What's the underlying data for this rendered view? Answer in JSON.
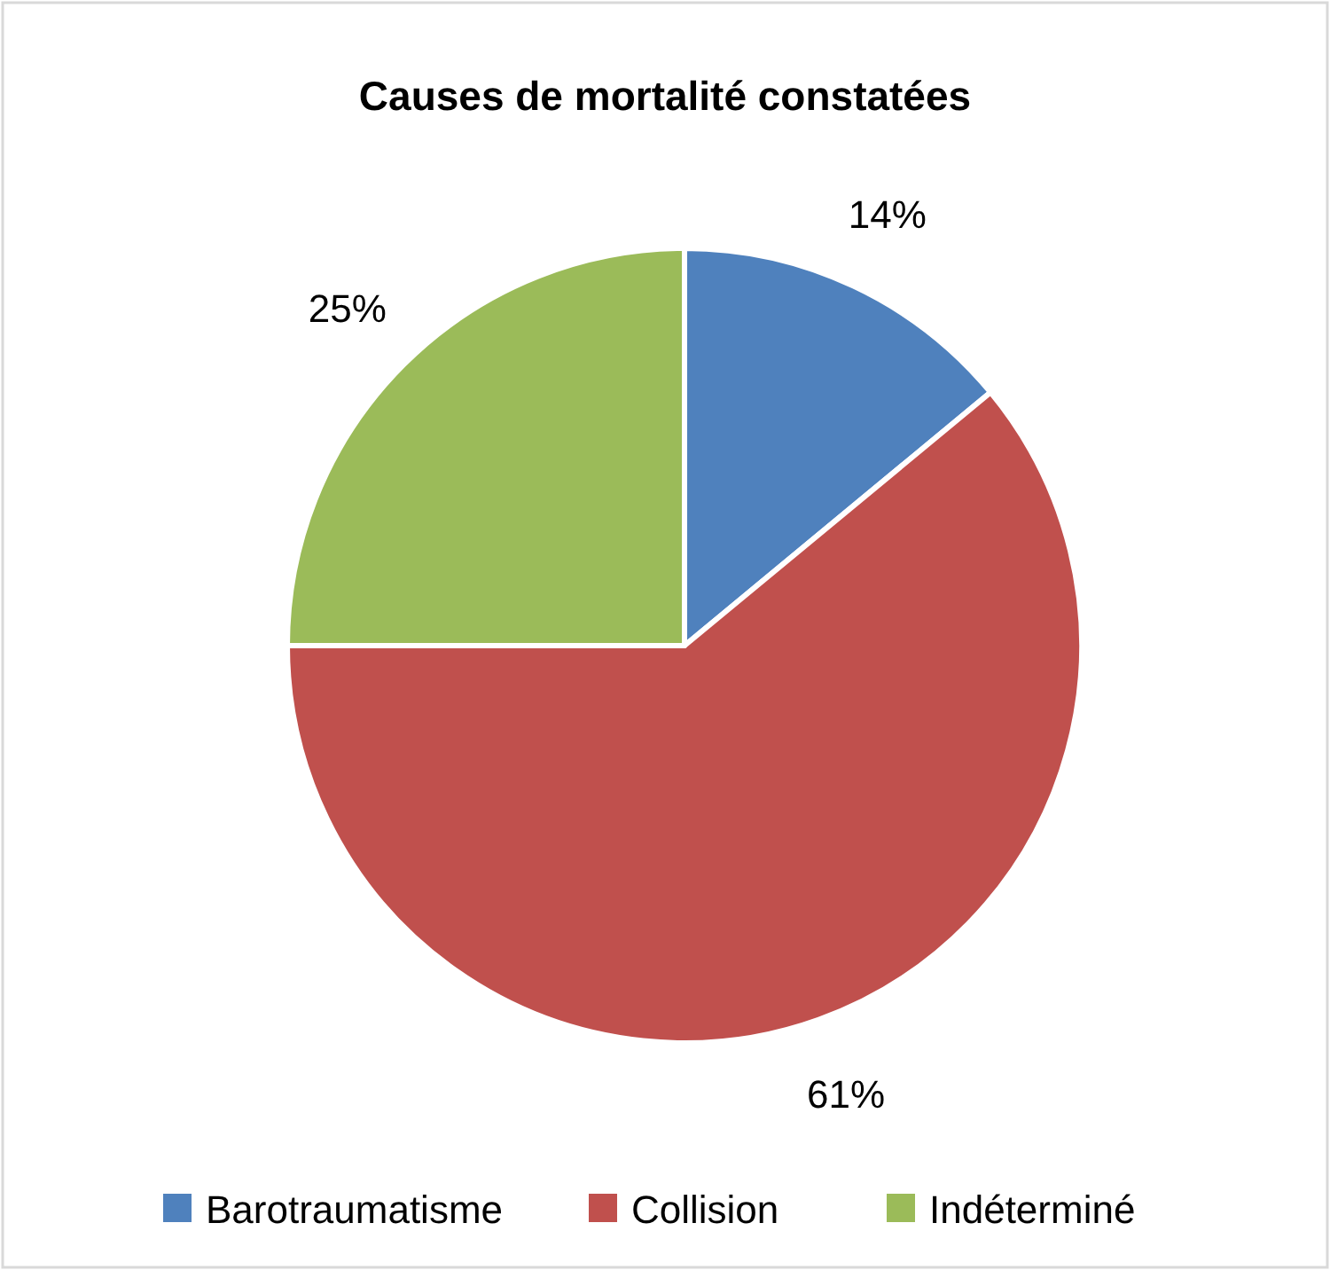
{
  "chart_data": {
    "type": "pie",
    "title": "Causes de mortalité constatées",
    "categories": [
      "Barotraumatisme",
      "Collision",
      "Indéterminé"
    ],
    "values": [
      14,
      61,
      25
    ],
    "colors": [
      "#4f81bd",
      "#c0504d",
      "#9bbb59"
    ],
    "value_labels": [
      "14%",
      "61%",
      "25%"
    ],
    "legend": "bottom"
  }
}
